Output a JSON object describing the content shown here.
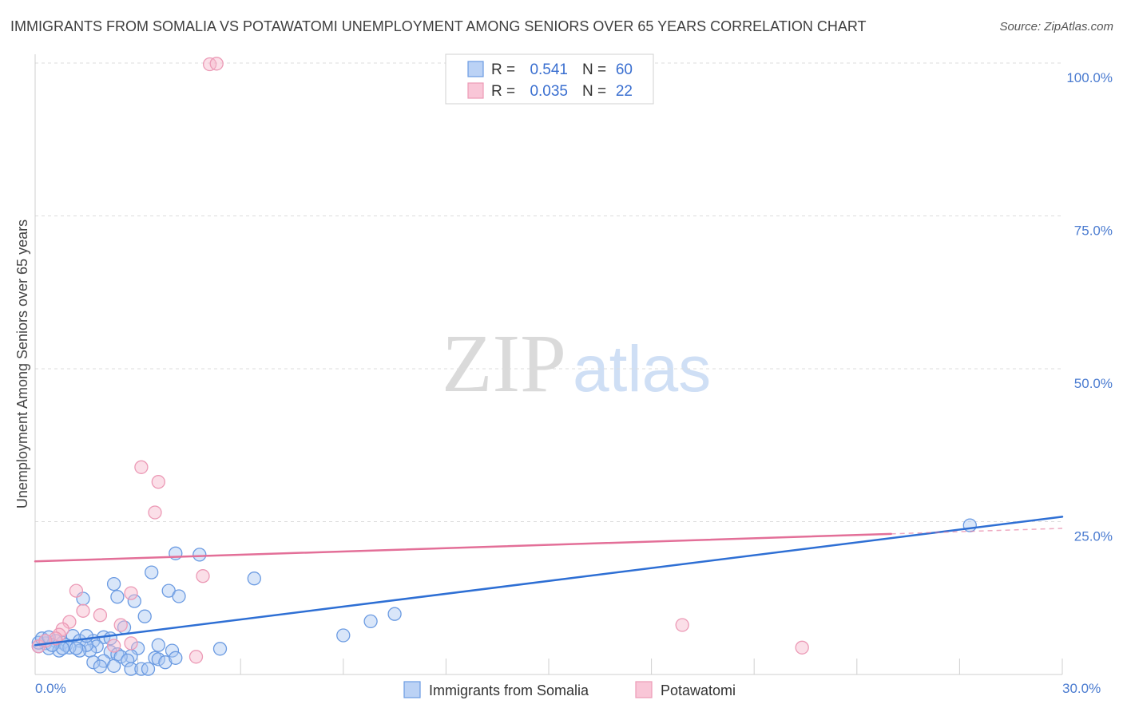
{
  "watermark": {
    "zip": "ZIP",
    "atlas": "atlas"
  },
  "chart_data": {
    "type": "scatter",
    "title": "IMMIGRANTS FROM SOMALIA VS POTAWATOMI UNEMPLOYMENT AMONG SENIORS OVER 65 YEARS CORRELATION CHART",
    "source": "Source: ZipAtlas.com",
    "xlabel": "",
    "ylabel": "Unemployment Among Seniors over 65 years",
    "xlim": [
      0,
      30
    ],
    "ylim": [
      0,
      100
    ],
    "grid": true,
    "legend_position": "top-center",
    "x_ticks": [
      {
        "value": 0,
        "label": "0.0%"
      },
      {
        "value": 30,
        "label": "30.0%"
      }
    ],
    "x_tick_marks": [
      0,
      3,
      6,
      9,
      12,
      15,
      18,
      21,
      24,
      27,
      30
    ],
    "y_ticks": [
      {
        "value": 100,
        "label": "100.0%"
      },
      {
        "value": 75,
        "label": "75.0%"
      },
      {
        "value": 50,
        "label": "50.0%"
      },
      {
        "value": 25,
        "label": "25.0%"
      }
    ],
    "series": [
      {
        "name": "Immigrants from Somalia",
        "fill": "#aac7f2",
        "stroke": "#6b9be2",
        "line": "#2e6fd4",
        "stats": {
          "r_label": "R =",
          "r": "0.541",
          "n_label": "N =",
          "n": "60"
        },
        "trend": {
          "start": [
            0,
            4.8
          ],
          "end": [
            30,
            25.8
          ],
          "solid_to_x": 30
        },
        "points": [
          [
            27.3,
            24.4
          ],
          [
            4.1,
            19.8
          ],
          [
            4.8,
            19.6
          ],
          [
            3.4,
            16.7
          ],
          [
            6.4,
            15.7
          ],
          [
            2.3,
            14.8
          ],
          [
            3.9,
            13.7
          ],
          [
            4.2,
            12.8
          ],
          [
            2.4,
            12.7
          ],
          [
            1.4,
            12.4
          ],
          [
            2.9,
            12.0
          ],
          [
            3.2,
            9.5
          ],
          [
            10.5,
            9.9
          ],
          [
            9.8,
            8.7
          ],
          [
            2.6,
            7.7
          ],
          [
            9.0,
            6.4
          ],
          [
            5.4,
            4.2
          ],
          [
            2.0,
            6.1
          ],
          [
            1.1,
            6.3
          ],
          [
            1.3,
            5.5
          ],
          [
            0.8,
            5.2
          ],
          [
            0.6,
            5.5
          ],
          [
            0.3,
            5.1
          ],
          [
            0.1,
            4.6
          ],
          [
            0.4,
            4.3
          ],
          [
            0.7,
            3.9
          ],
          [
            0.9,
            4.8
          ],
          [
            1.7,
            5.5
          ],
          [
            1.8,
            4.6
          ],
          [
            1.6,
            3.9
          ],
          [
            2.2,
            3.7
          ],
          [
            2.4,
            3.3
          ],
          [
            3.6,
            4.8
          ],
          [
            3.0,
            4.3
          ],
          [
            4.0,
            3.9
          ],
          [
            2.8,
            3.0
          ],
          [
            2.5,
            2.9
          ],
          [
            2.7,
            2.3
          ],
          [
            2.0,
            2.2
          ],
          [
            1.7,
            2.0
          ],
          [
            1.9,
            1.3
          ],
          [
            2.3,
            1.4
          ],
          [
            2.8,
            0.9
          ],
          [
            3.1,
            0.9
          ],
          [
            3.3,
            0.9
          ],
          [
            3.5,
            2.7
          ],
          [
            3.6,
            2.5
          ],
          [
            3.8,
            2.0
          ],
          [
            4.1,
            2.7
          ],
          [
            1.5,
            4.8
          ],
          [
            1.3,
            3.9
          ],
          [
            1.0,
            4.4
          ],
          [
            0.8,
            4.3
          ],
          [
            0.5,
            4.8
          ],
          [
            0.1,
            5.2
          ],
          [
            0.2,
            5.9
          ],
          [
            0.4,
            6.1
          ],
          [
            1.5,
            6.3
          ],
          [
            1.2,
            4.3
          ],
          [
            2.2,
            5.9
          ]
        ]
      },
      {
        "name": "Potawatomi",
        "fill": "#f7b8cd",
        "stroke": "#ec9ab6",
        "line": "#e36f98",
        "stats": {
          "r_label": "R =",
          "r": "0.035",
          "n_label": "N =",
          "n": "22"
        },
        "trend": {
          "start": [
            0,
            18.5
          ],
          "end": [
            30,
            23.9
          ],
          "solid_to_x": 25
        },
        "points": [
          [
            5.1,
            99.8
          ],
          [
            5.3,
            99.9
          ],
          [
            3.1,
            33.9
          ],
          [
            3.6,
            31.5
          ],
          [
            3.5,
            26.5
          ],
          [
            4.9,
            16.1
          ],
          [
            1.2,
            13.7
          ],
          [
            2.8,
            13.3
          ],
          [
            1.4,
            10.4
          ],
          [
            1.9,
            9.7
          ],
          [
            1.0,
            8.6
          ],
          [
            2.5,
            8.1
          ],
          [
            18.9,
            8.1
          ],
          [
            0.8,
            7.4
          ],
          [
            0.7,
            6.5
          ],
          [
            0.6,
            5.9
          ],
          [
            22.4,
            4.4
          ],
          [
            2.3,
            4.7
          ],
          [
            2.8,
            5.1
          ],
          [
            4.7,
            2.9
          ],
          [
            0.1,
            4.6
          ],
          [
            0.3,
            5.5
          ]
        ]
      }
    ]
  }
}
